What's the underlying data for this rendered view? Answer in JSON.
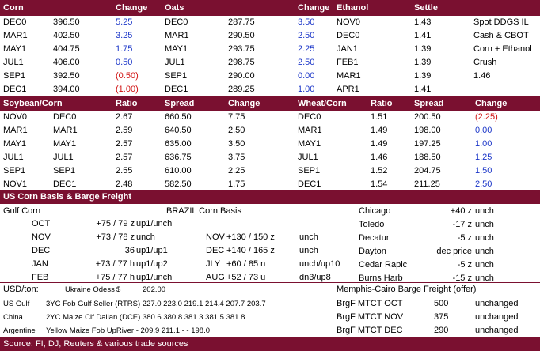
{
  "top": {
    "headers": [
      "Corn",
      "Change",
      "Oats",
      "Change",
      "Ethanol",
      "Settle"
    ],
    "rows": [
      {
        "corn": "DEC0",
        "corn_val": "396.50",
        "corn_chg": "5.25",
        "corn_cls": "blue",
        "oats": "DEC0",
        "oats_val": "287.75",
        "oats_chg": "3.50",
        "oats_cls": "blue",
        "eth": "NOV0",
        "eth_val": "1.43",
        "note": "Spot DDGS IL"
      },
      {
        "corn": "MAR1",
        "corn_val": "402.50",
        "corn_chg": "3.25",
        "corn_cls": "blue",
        "oats": "MAR1",
        "oats_val": "290.50",
        "oats_chg": "2.50",
        "oats_cls": "blue",
        "eth": "DEC0",
        "eth_val": "1.41",
        "note": "Cash & CBOT"
      },
      {
        "corn": "MAY1",
        "corn_val": "404.75",
        "corn_chg": "1.75",
        "corn_cls": "blue",
        "oats": "MAY1",
        "oats_val": "293.75",
        "oats_chg": "2.25",
        "oats_cls": "blue",
        "eth": "JAN1",
        "eth_val": "1.39",
        "note": "Corn + Ethanol"
      },
      {
        "corn": "JUL1",
        "corn_val": "406.00",
        "corn_chg": "0.50",
        "corn_cls": "blue",
        "oats": "JUL1",
        "oats_val": "298.75",
        "oats_chg": "2.50",
        "oats_cls": "blue",
        "eth": "FEB1",
        "eth_val": "1.39",
        "note": "Crush"
      },
      {
        "corn": "SEP1",
        "corn_val": "392.50",
        "corn_chg": "(0.50)",
        "corn_cls": "red",
        "oats": "SEP1",
        "oats_val": "290.00",
        "oats_chg": "0.00",
        "oats_cls": "blue",
        "eth": "MAR1",
        "eth_val": "1.39",
        "note": "1.46"
      },
      {
        "corn": "DEC1",
        "corn_val": "394.00",
        "corn_chg": "(1.00)",
        "corn_cls": "red",
        "oats": "DEC1",
        "oats_val": "289.25",
        "oats_chg": "1.00",
        "oats_cls": "blue",
        "eth": "APR1",
        "eth_val": "1.41",
        "note": ""
      }
    ]
  },
  "spread": {
    "headers": [
      "Soybean/Corn",
      "Ratio",
      "Spread",
      "Change",
      "Wheat/Corn",
      "Ratio",
      "Spread",
      "Change"
    ],
    "rows": [
      {
        "a": "NOV0",
        "b": "DEC0",
        "ratio": "2.67",
        "spread": "660.50",
        "chg": "7.75",
        "wa": "DEC0",
        "wratio": "1.51",
        "wspread": "200.50",
        "wchg": "(2.25)",
        "wcls": "red"
      },
      {
        "a": "MAR1",
        "b": "MAR1",
        "ratio": "2.59",
        "spread": "640.50",
        "chg": "2.50",
        "wa": "MAR1",
        "wratio": "1.49",
        "wspread": "198.00",
        "wchg": "0.00",
        "wcls": "blue"
      },
      {
        "a": "MAY1",
        "b": "MAY1",
        "ratio": "2.57",
        "spread": "635.00",
        "chg": "3.50",
        "wa": "MAY1",
        "wratio": "1.49",
        "wspread": "197.25",
        "wchg": "1.00",
        "wcls": "blue"
      },
      {
        "a": "JUL1",
        "b": "JUL1",
        "ratio": "2.57",
        "spread": "636.75",
        "chg": "3.75",
        "wa": "JUL1",
        "wratio": "1.46",
        "wspread": "188.50",
        "wchg": "1.25",
        "wcls": "blue"
      },
      {
        "a": "SEP1",
        "b": "SEP1",
        "ratio": "2.55",
        "spread": "610.00",
        "chg": "2.25",
        "wa": "SEP1",
        "wratio": "1.52",
        "wspread": "204.75",
        "wchg": "1.50",
        "wcls": "blue"
      },
      {
        "a": "NOV1",
        "b": "DEC1",
        "ratio": "2.48",
        "spread": "582.50",
        "chg": "1.75",
        "wa": "DEC1",
        "wratio": "1.54",
        "wspread": "211.25",
        "wchg": "2.50",
        "wcls": "blue"
      }
    ]
  },
  "basis": {
    "title": "US Corn Basis & Barge Freight",
    "gulf_title": "Gulf Corn",
    "brazil_title": "BRAZIL Corn Basis",
    "gulf": [
      {
        "m": "OCT",
        "v": "+75 / 79 z",
        "t": "up1/unch"
      },
      {
        "m": "NOV",
        "v": "+73 / 78 z",
        "t": "unch"
      },
      {
        "m": "DEC",
        "v": "36",
        "t": "up1/up1"
      },
      {
        "m": "JAN",
        "v": "+73 / 77 h",
        "t": "up1/up2"
      },
      {
        "m": "FEB",
        "v": "+75 / 77 h",
        "t": "up1/unch"
      }
    ],
    "brazil": [
      {
        "m": "",
        "v": "",
        "t": ""
      },
      {
        "m": "NOV",
        "v": "+130 / 150 z",
        "t": "unch"
      },
      {
        "m": "DEC",
        "v": "+140 / 165 z",
        "t": "unch"
      },
      {
        "m": "JLY",
        "v": "+60 / 85 n",
        "t": "unch/up10"
      },
      {
        "m": "AUG",
        "v": "+52 / 73 u",
        "t": "dn3/up8"
      }
    ],
    "interior": [
      {
        "loc": "Chicago",
        "v": "+40 z",
        "t": "unch"
      },
      {
        "loc": "Toledo",
        "v": "-17 z",
        "t": "unch"
      },
      {
        "loc": "Decatur",
        "v": "-5 z",
        "t": "unch"
      },
      {
        "loc": "Dayton",
        "v": "dec price",
        "t": "unch"
      },
      {
        "loc": "Cedar Rapic",
        "v": "-5 z",
        "t": "unch"
      },
      {
        "loc": "Burns Harb",
        "v": "-15 z",
        "t": "unch"
      }
    ]
  },
  "fob": {
    "usd_label": "USD/ton:",
    "odessa_label": "Ukraine Odess",
    "odessa_cur": "$",
    "odessa_val": "202.00",
    "rows": [
      {
        "o": "US Gulf",
        "d": "3YC Fob Gulf Seller (RTRS) 227.0  223.0  219.1  214.4  207.7  203.7"
      },
      {
        "o": "China",
        "d": "2YC Maize Cif Dalian (DCE) 380.6  380.8  381.3  381.5  381.8"
      },
      {
        "o": "Argentine",
        "d": "Yellow Maize Fob UpRiver   -   209.9  211.1   -    -   198.0"
      }
    ],
    "barge_title": "Memphis-Cairo Barge Freight (offer)",
    "barge": [
      {
        "l": "BrgF MTCT OCT",
        "v": "500",
        "t": "unchanged"
      },
      {
        "l": "BrgF MTCT NOV",
        "v": "375",
        "t": "unchanged"
      },
      {
        "l": "BrgF MTCT DEC",
        "v": "290",
        "t": "unchanged"
      }
    ]
  },
  "source": "Source: FI, DJ, Reuters & various trade sources"
}
